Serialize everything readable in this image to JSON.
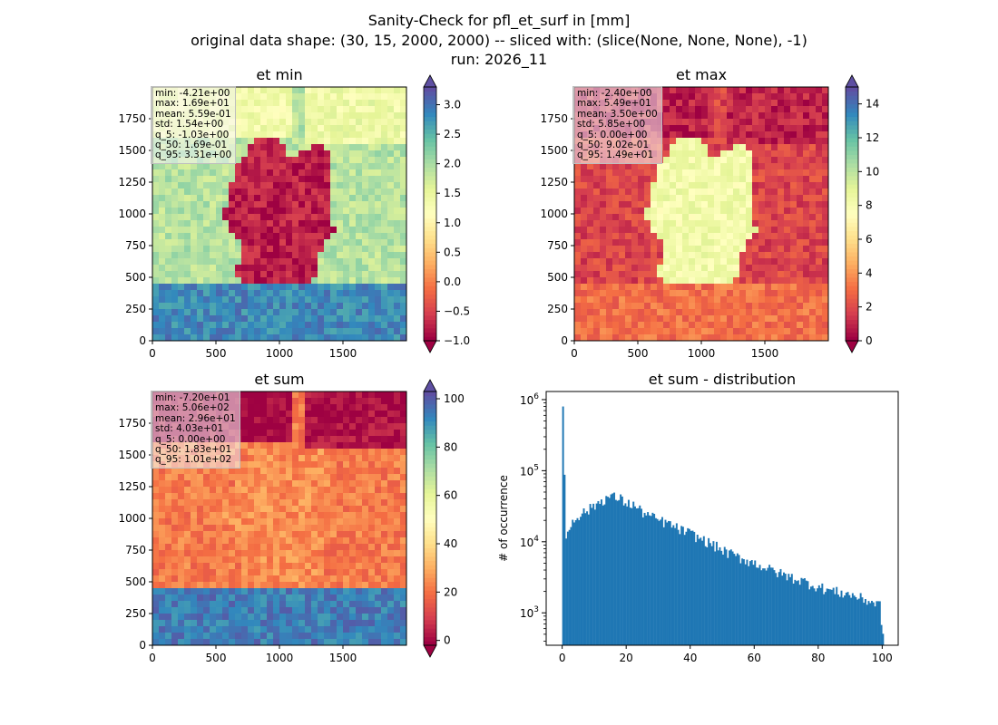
{
  "figure": {
    "title_lines": [
      "Sanity-Check for pfl_et_surf in [mm]",
      "original data shape: (30, 15, 2000, 2000) -- sliced with: (slice(None, None, None), -1)",
      "run: 2026_11"
    ]
  },
  "colormap": "Spectral",
  "chart_data": [
    {
      "type": "heatmap",
      "title": "et min",
      "colormap": "Spectral",
      "xlim": [
        0,
        2000
      ],
      "ylim": [
        0,
        2000
      ],
      "x_ticks": [
        0,
        500,
        1000,
        1500
      ],
      "y_ticks": [
        0,
        250,
        500,
        750,
        1000,
        1250,
        1500,
        1750
      ],
      "colorbar": {
        "vmin": -1.0,
        "vmax": 3.3,
        "ticks": [
          -1.0,
          -0.5,
          0.0,
          0.5,
          1.0,
          1.5,
          2.0,
          2.5,
          3.0
        ],
        "tick_labels": [
          "−1.0",
          "−0.5",
          "0.0",
          "0.5",
          "1.0",
          "1.5",
          "2.0",
          "2.5",
          "3.0"
        ],
        "extend": "both"
      },
      "stats": [
        "min: -4.21e+00",
        "max: 1.69e+01",
        "mean: 5.59e-01",
        "std: 1.54e+00",
        "q_5: -1.03e+00",
        "q_50: 1.69e-01",
        "q_95: 3.31e+00"
      ],
      "regions": {
        "germany": 0.05,
        "north_sea": 0.55,
        "surroundings": 0.68,
        "alps": 0.9
      }
    },
    {
      "type": "heatmap",
      "title": "et max",
      "colormap": "Spectral",
      "xlim": [
        0,
        2000
      ],
      "ylim": [
        0,
        2000
      ],
      "x_ticks": [
        0,
        500,
        1000,
        1500
      ],
      "y_ticks": [
        0,
        250,
        500,
        750,
        1000,
        1250,
        1500,
        1750
      ],
      "colorbar": {
        "vmin": 0,
        "vmax": 15,
        "ticks": [
          0,
          2,
          4,
          6,
          8,
          10,
          12,
          14
        ],
        "tick_labels": [
          "0",
          "2",
          "4",
          "6",
          "8",
          "10",
          "12",
          "14"
        ],
        "extend": "both"
      },
      "stats": [
        "min: -2.40e+00",
        "max: 5.49e+01",
        "mean: 3.50e+00",
        "std: 5.85e+00",
        "q_5: 0.00e+00",
        "q_50: 9.02e-01",
        "q_95: 1.49e+01"
      ],
      "regions": {
        "germany": 0.55,
        "north_sea": 0.05,
        "surroundings": 0.12,
        "alps": 0.2
      }
    },
    {
      "type": "heatmap",
      "title": "et sum",
      "colormap": "Spectral",
      "xlim": [
        0,
        2000
      ],
      "ylim": [
        0,
        2000
      ],
      "x_ticks": [
        0,
        500,
        1000,
        1500
      ],
      "y_ticks": [
        0,
        250,
        500,
        750,
        1000,
        1250,
        1500,
        1750
      ],
      "colorbar": {
        "vmin": -2,
        "vmax": 103,
        "ticks": [
          0,
          20,
          40,
          60,
          80,
          100
        ],
        "tick_labels": [
          "0",
          "20",
          "40",
          "60",
          "80",
          "100"
        ],
        "extend": "both"
      },
      "stats": [
        "min: -7.20e+01",
        "max: 5.06e+02",
        "mean: 2.96e+01",
        "std: 4.03e+01",
        "q_5: 0.00e+00",
        "q_50: 1.83e+01",
        "q_95: 1.01e+02"
      ],
      "regions": {
        "germany": 0.25,
        "north_sea": 0.0,
        "surroundings": 0.22,
        "alps": 0.92
      }
    },
    {
      "type": "bar",
      "subtype": "histogram",
      "title": "et sum - distribution",
      "xlabel": "",
      "ylabel": "# of occurrence",
      "yscale": "log",
      "xlim": [
        -5,
        105
      ],
      "ylim": [
        350,
        1300000
      ],
      "x_ticks": [
        0,
        20,
        40,
        60,
        80,
        100
      ],
      "y_ticks": [
        1000,
        10000,
        100000,
        1000000
      ],
      "y_tick_labels": [
        {
          "base": "10",
          "exp": "3"
        },
        {
          "base": "10",
          "exp": "4"
        },
        {
          "base": "10",
          "exp": "5"
        },
        {
          "base": "10",
          "exp": "6"
        }
      ],
      "bar_color": "#1f77b4",
      "bin_width": 0.5,
      "bins": [
        {
          "x": 0,
          "count": 800000
        },
        {
          "x": 1,
          "count": 11000
        },
        {
          "x": 2,
          "count": 15000
        },
        {
          "x": 3,
          "count": 20000
        },
        {
          "x": 5,
          "count": 24000
        },
        {
          "x": 8,
          "count": 28000
        },
        {
          "x": 10,
          "count": 33000
        },
        {
          "x": 12,
          "count": 38000
        },
        {
          "x": 15,
          "count": 44000
        },
        {
          "x": 18,
          "count": 40000
        },
        {
          "x": 20,
          "count": 35000
        },
        {
          "x": 22,
          "count": 33000
        },
        {
          "x": 25,
          "count": 26000
        },
        {
          "x": 28,
          "count": 22000
        },
        {
          "x": 30,
          "count": 20000
        },
        {
          "x": 33,
          "count": 18000
        },
        {
          "x": 35,
          "count": 16000
        },
        {
          "x": 38,
          "count": 14000
        },
        {
          "x": 40,
          "count": 13000
        },
        {
          "x": 43,
          "count": 11000
        },
        {
          "x": 45,
          "count": 10000
        },
        {
          "x": 48,
          "count": 8500
        },
        {
          "x": 50,
          "count": 7500
        },
        {
          "x": 55,
          "count": 6000
        },
        {
          "x": 60,
          "count": 5000
        },
        {
          "x": 65,
          "count": 4000
        },
        {
          "x": 70,
          "count": 3300
        },
        {
          "x": 75,
          "count": 2800
        },
        {
          "x": 80,
          "count": 2300
        },
        {
          "x": 85,
          "count": 2000
        },
        {
          "x": 90,
          "count": 1800
        },
        {
          "x": 95,
          "count": 1500
        },
        {
          "x": 99,
          "count": 1300
        },
        {
          "x": 100,
          "count": 500
        }
      ]
    }
  ]
}
